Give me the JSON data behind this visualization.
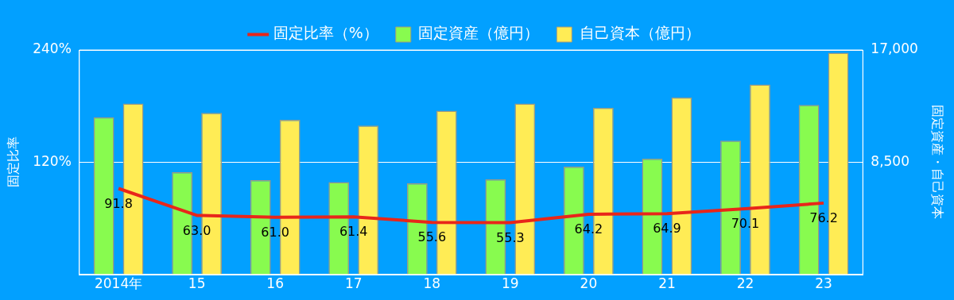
{
  "chart_data": {
    "type": "bar",
    "categories": [
      "2014年",
      "15",
      "16",
      "17",
      "18",
      "19",
      "20",
      "21",
      "22",
      "23"
    ],
    "series": [
      {
        "name": "固定比率（%）",
        "type": "line",
        "color": "#e8261a",
        "axis": "y",
        "marker": "none",
        "values": [
          91.8,
          63.0,
          61.0,
          61.4,
          55.6,
          55.3,
          64.2,
          64.9,
          70.1,
          76.2
        ],
        "value_labels": [
          "91.8",
          "63.0",
          "61.0",
          "61.4",
          "55.6",
          "55.3",
          "64.2",
          "64.9",
          "70.1",
          "76.2"
        ]
      },
      {
        "name": "固定資産（億円）",
        "color": "#88fb4f",
        "axis": "y2",
        "values": [
          11900,
          7740,
          7140,
          6980,
          6900,
          7200,
          8160,
          8760,
          10120,
          12830
        ]
      },
      {
        "name": "自己資本（億円）",
        "color": "#ffec55",
        "axis": "y2",
        "values": [
          12940,
          12230,
          11700,
          11270,
          12400,
          12940,
          12630,
          13400,
          14390,
          16790
        ]
      }
    ],
    "ylim": [
      0,
      240
    ],
    "yticks": [
      {
        "value": 0,
        "label": null
      },
      {
        "value": 120,
        "label": "120%"
      },
      {
        "value": 240,
        "label": "240%"
      }
    ],
    "y2lim": [
      0,
      17000
    ],
    "y2ticks": [
      {
        "value": 0,
        "label": null
      },
      {
        "value": 8500,
        "label": "8,500"
      },
      {
        "value": 17000,
        "label": "17,000"
      }
    ],
    "ylabel": "固定比率",
    "y2label": "固定資産・自己資本",
    "legend": "top",
    "grid": "y"
  }
}
